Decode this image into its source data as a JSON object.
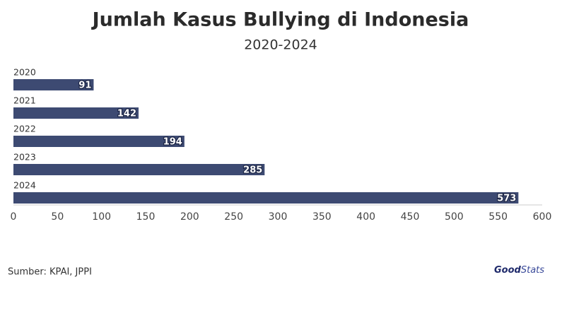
{
  "chart_data": {
    "type": "barh",
    "title": "Jumlah Kasus Bullying di Indonesia",
    "subtitle": "2020-2024",
    "categories": [
      "2020",
      "2021",
      "2022",
      "2023",
      "2024"
    ],
    "values": [
      91,
      142,
      194,
      285,
      573
    ],
    "color": "#3d4a72",
    "xlim": [
      0,
      600
    ],
    "xticks": [
      0,
      50,
      100,
      150,
      200,
      250,
      300,
      350,
      400,
      450,
      500,
      550,
      600
    ],
    "source": "Sumber: KPAI, JPPI",
    "logo": [
      "Good",
      "Stats"
    ]
  }
}
